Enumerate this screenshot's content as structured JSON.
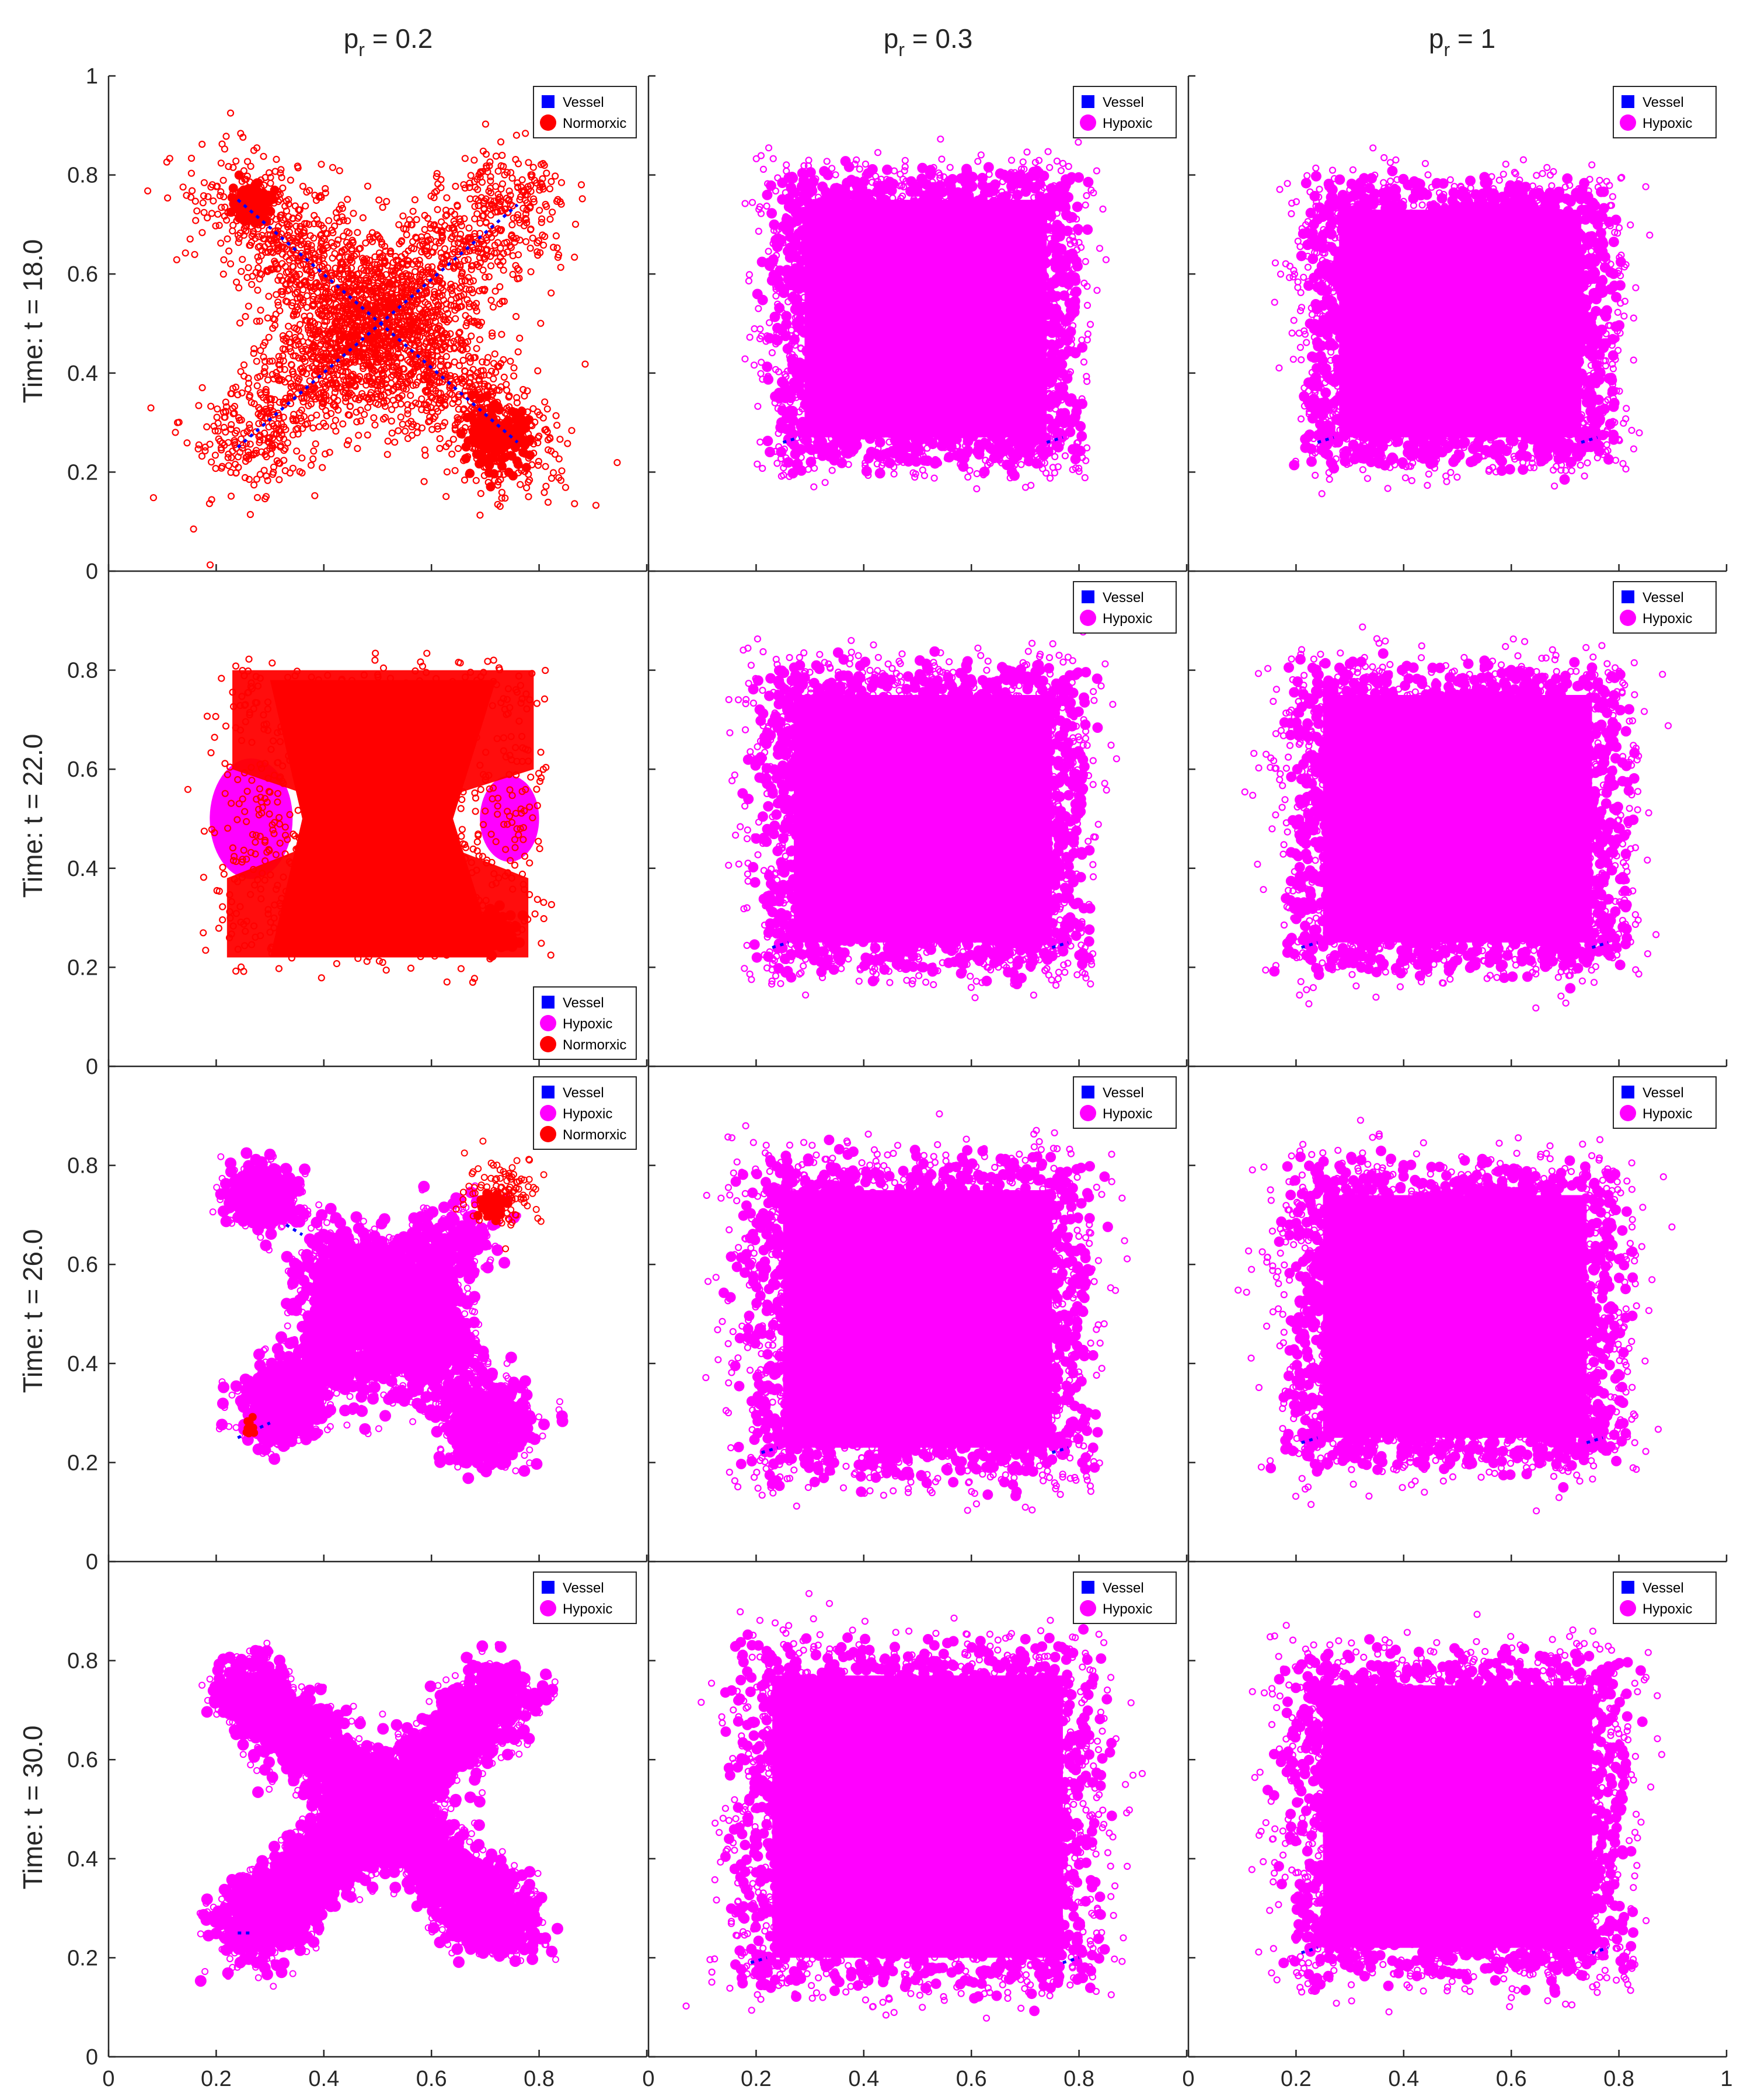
{
  "figure": {
    "columns": [
      {
        "label_main": "p",
        "label_sub": "r",
        "label_value": " = 0.2"
      },
      {
        "label_main": "p",
        "label_sub": "r",
        "label_value": " = 0.3"
      },
      {
        "label_main": "p",
        "label_sub": "r",
        "label_value": " = 1"
      }
    ],
    "rows": [
      {
        "label": "Time: t = 18.0"
      },
      {
        "label": "Time: t = 22.0"
      },
      {
        "label": "Time: t = 26.0"
      },
      {
        "label": "Time: t = 30.0"
      }
    ],
    "x_ticks_bottom_panel": [
      "0",
      "0.2",
      "0.4",
      "0.6",
      "0.8",
      "1"
    ],
    "x_ticks_abbreviated": [
      "0",
      "0.2",
      "0.4",
      "0.6",
      "0.8"
    ],
    "y_ticks": [
      "0",
      "0.2",
      "0.4",
      "0.6",
      "0.8",
      "1"
    ],
    "y_ticks_inner": [
      "0",
      "0.2",
      "0.4",
      "0.6",
      "0.8"
    ]
  },
  "colors": {
    "vessel": "#0000ff",
    "hypoxic": "#ff00ff",
    "normoxic": "#ff0000",
    "axis": "#262626"
  },
  "chart_data": {
    "type": "scatter",
    "xlim": [
      0,
      1
    ],
    "ylim": [
      0,
      1
    ],
    "grid": false,
    "legend_entries": {
      "vessel": "Vessel",
      "hypoxic": "Hypoxic",
      "normoxic": "Normorxic"
    },
    "panels": [
      {
        "row": 0,
        "col": 0,
        "legend": [
          "vessel",
          "normoxic"
        ],
        "legend_position": "top-right",
        "shape": "cross",
        "density": 0.9,
        "spread": 0.06,
        "extent": 0.27,
        "extra_blobs": [
          [
            0.265,
            0.745,
            0.018
          ],
          [
            0.72,
            0.27,
            0.03
          ]
        ],
        "populations": [
          {
            "type": "normoxic",
            "fraction": 1.0
          }
        ],
        "vessels": "diagonals"
      },
      {
        "row": 0,
        "col": 1,
        "legend": [
          "vessel",
          "hypoxic"
        ],
        "legend_position": "top-right",
        "shape": "square",
        "extent": [
          0.24,
          0.79,
          0.22,
          0.8
        ],
        "spread": 0.025,
        "populations": [
          {
            "type": "hypoxic",
            "fraction": 1.0
          }
        ],
        "vessels": "segments"
      },
      {
        "row": 0,
        "col": 2,
        "legend": [
          "vessel",
          "hypoxic"
        ],
        "legend_position": "top-right",
        "shape": "square",
        "extent": [
          0.23,
          0.78,
          0.22,
          0.78
        ],
        "spread": 0.025,
        "populations": [
          {
            "type": "hypoxic",
            "fraction": 1.0
          }
        ],
        "vessels": "corners"
      },
      {
        "row": 1,
        "col": 0,
        "legend": [
          "vessel",
          "hypoxic",
          "normoxic"
        ],
        "legend_position": "bottom-right",
        "shape": "bowtie",
        "extent": [
          0.21,
          0.79,
          0.22,
          0.8
        ],
        "spread": 0.025,
        "populations": [
          {
            "type": "normoxic",
            "fraction": 1.0
          }
        ],
        "hypoxic_lobes": [
          [
            0.265,
            0.5,
            0.07
          ],
          [
            0.745,
            0.5,
            0.05
          ]
        ],
        "vessels": "none"
      },
      {
        "row": 1,
        "col": 1,
        "legend": [
          "vessel",
          "hypoxic"
        ],
        "legend_position": "top-right",
        "shape": "square",
        "extent": [
          0.22,
          0.8,
          0.2,
          0.8
        ],
        "spread": 0.03,
        "populations": [
          {
            "type": "hypoxic",
            "fraction": 1.0
          }
        ],
        "vessels": "segments"
      },
      {
        "row": 1,
        "col": 2,
        "legend": [
          "vessel",
          "hypoxic"
        ],
        "legend_position": "top-right",
        "shape": "square",
        "extent": [
          0.2,
          0.8,
          0.2,
          0.8
        ],
        "spread": 0.03,
        "populations": [
          {
            "type": "hypoxic",
            "fraction": 1.0
          }
        ],
        "vessels": "corners"
      },
      {
        "row": 2,
        "col": 0,
        "legend": [
          "vessel",
          "hypoxic",
          "normoxic"
        ],
        "legend_position": "top-right",
        "shape": "x-blobs",
        "spread": 0.04,
        "populations": [
          {
            "type": "hypoxic",
            "fraction": 1.0
          }
        ],
        "normoxic_patch": [
          0.715,
          0.72,
          0.035
        ],
        "vessels": "stubs"
      },
      {
        "row": 2,
        "col": 1,
        "legend": [
          "vessel",
          "hypoxic"
        ],
        "legend_position": "top-right",
        "shape": "square",
        "extent": [
          0.2,
          0.8,
          0.18,
          0.8
        ],
        "spread": 0.04,
        "populations": [
          {
            "type": "hypoxic",
            "fraction": 1.0
          }
        ],
        "vessels": "segments"
      },
      {
        "row": 2,
        "col": 2,
        "legend": [
          "vessel",
          "hypoxic"
        ],
        "legend_position": "top-right",
        "shape": "square",
        "extent": [
          0.2,
          0.79,
          0.2,
          0.79
        ],
        "spread": 0.035,
        "populations": [
          {
            "type": "hypoxic",
            "fraction": 1.0
          }
        ],
        "vessels": "corners"
      },
      {
        "row": 3,
        "col": 0,
        "legend": [
          "vessel",
          "hypoxic"
        ],
        "legend_position": "top-right",
        "shape": "x-arms",
        "spread": 0.035,
        "extent": 0.25,
        "populations": [
          {
            "type": "hypoxic",
            "fraction": 1.0
          }
        ],
        "vessels": "stub-bl"
      },
      {
        "row": 3,
        "col": 1,
        "legend": [
          "vessel",
          "hypoxic"
        ],
        "legend_position": "top-right",
        "shape": "square",
        "extent": [
          0.18,
          0.82,
          0.15,
          0.82
        ],
        "spread": 0.04,
        "populations": [
          {
            "type": "hypoxic",
            "fraction": 1.0
          }
        ],
        "vessels": "segments"
      },
      {
        "row": 3,
        "col": 2,
        "legend": [
          "vessel",
          "hypoxic"
        ],
        "legend_position": "top-right",
        "shape": "square",
        "extent": [
          0.2,
          0.8,
          0.17,
          0.8
        ],
        "spread": 0.035,
        "populations": [
          {
            "type": "hypoxic",
            "fraction": 1.0
          }
        ],
        "vessels": "corners"
      }
    ]
  }
}
